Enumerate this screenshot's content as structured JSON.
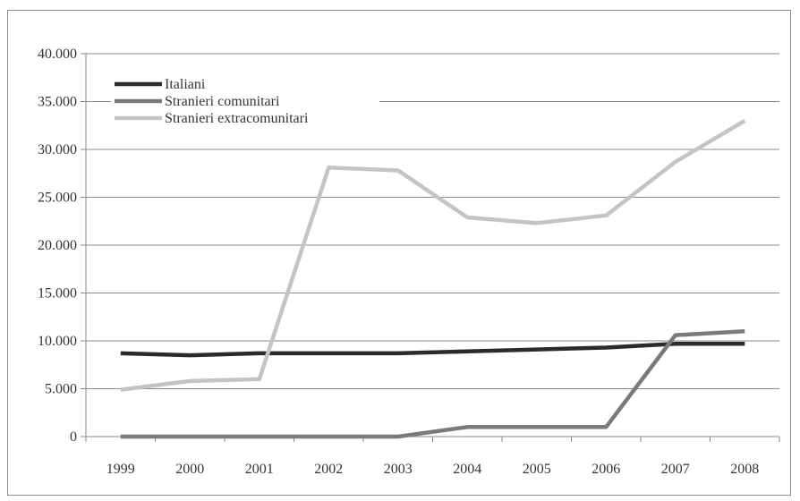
{
  "chart_data": {
    "type": "line",
    "categories": [
      "1999",
      "2000",
      "2001",
      "2002",
      "2003",
      "2004",
      "2005",
      "2006",
      "2007",
      "2008"
    ],
    "yticks": [
      "0",
      "5.000",
      "10.000",
      "15.000",
      "20.000",
      "25.000",
      "30.000",
      "35.000",
      "40.000"
    ],
    "ylim": [
      0,
      40000
    ],
    "grid": true,
    "legend_position": "top-left",
    "series": [
      {
        "name": "Italiani",
        "color": "#2b2b2b",
        "values": [
          8700,
          8500,
          8700,
          8700,
          8700,
          8900,
          9100,
          9300,
          9700,
          9700
        ]
      },
      {
        "name": "Stranieri comunitari",
        "color": "#7a7a7a",
        "values": [
          0,
          0,
          0,
          0,
          0,
          1000,
          1000,
          1000,
          10600,
          11000
        ]
      },
      {
        "name": "Stranieri extracomunitari",
        "color": "#c4c4c4",
        "values": [
          4900,
          5800,
          6000,
          28100,
          27800,
          22900,
          22300,
          23100,
          28700,
          33000
        ]
      }
    ]
  }
}
